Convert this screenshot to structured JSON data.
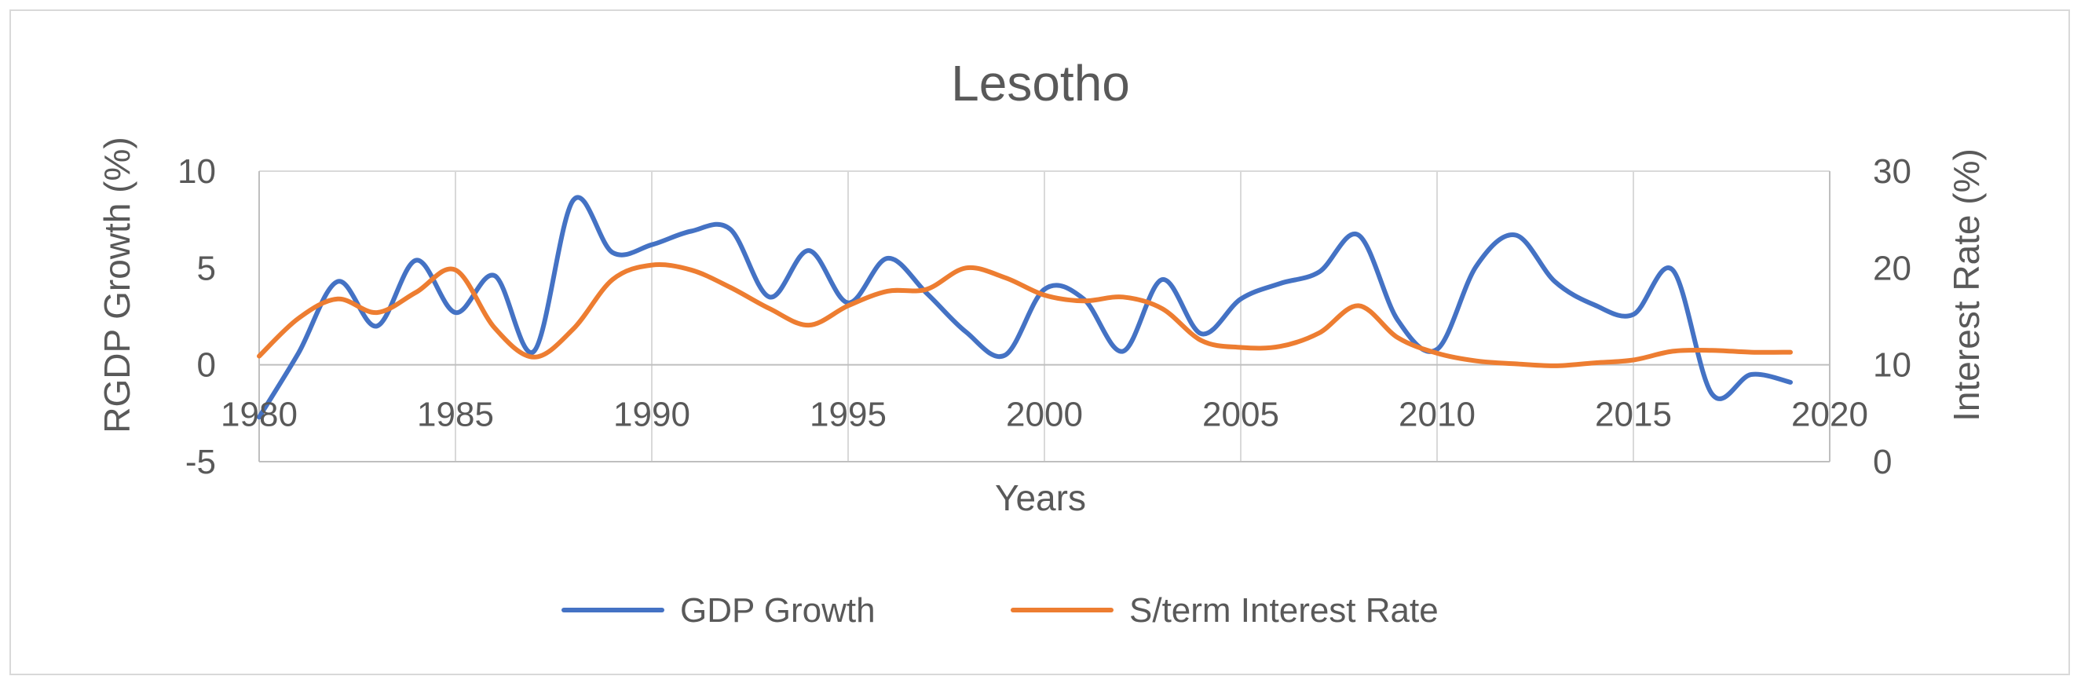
{
  "chart_data": {
    "type": "line",
    "title": "Lesotho",
    "xlabel": "Years",
    "ylabel_left": "RGDP Growth (%)",
    "ylabel_right": "Interest Rate (%)",
    "xlim": [
      1980,
      2020
    ],
    "ylim_left": [
      -5,
      10
    ],
    "ylim_right": [
      0,
      30
    ],
    "xticks": [
      "1980",
      "1985",
      "1990",
      "1995",
      "2000",
      "2005",
      "2010",
      "2015",
      "2020"
    ],
    "yticks_left": [
      "-5",
      "0",
      "5",
      "10"
    ],
    "yticks_right": [
      "0",
      "10",
      "20",
      "30"
    ],
    "grid": "vertical",
    "legend_position": "bottom",
    "x": [
      1980,
      1981,
      1982,
      1983,
      1984,
      1985,
      1986,
      1987,
      1988,
      1989,
      1990,
      1991,
      1992,
      1993,
      1994,
      1995,
      1996,
      1997,
      1998,
      1999,
      2000,
      2001,
      2002,
      2003,
      2004,
      2005,
      2006,
      2007,
      2008,
      2009,
      2010,
      2011,
      2012,
      2013,
      2014,
      2015,
      2016,
      2017,
      2018,
      2019
    ],
    "series": [
      {
        "name": "GDP Growth",
        "axis": "left",
        "color": "#4472c4",
        "values": [
          -2.7,
          0.6,
          4.3,
          2.0,
          5.4,
          2.7,
          4.6,
          0.7,
          8.5,
          5.8,
          6.2,
          6.9,
          7.0,
          3.5,
          5.9,
          3.2,
          5.5,
          3.7,
          1.7,
          0.5,
          3.9,
          3.4,
          0.7,
          4.4,
          1.6,
          3.4,
          4.2,
          4.8,
          6.7,
          2.3,
          0.8,
          5.1,
          6.7,
          4.3,
          3.1,
          2.6,
          4.9,
          -1.5,
          -0.5,
          -0.9
        ]
      },
      {
        "name": "S/term Interest Rate",
        "axis": "right",
        "color": "#ed7d31",
        "values": [
          10.9,
          14.8,
          16.8,
          15.4,
          17.5,
          19.8,
          13.8,
          10.8,
          13.7,
          18.8,
          20.3,
          19.8,
          18.0,
          15.8,
          14.1,
          16.1,
          17.6,
          17.8,
          20.0,
          19.0,
          17.2,
          16.6,
          17.0,
          15.8,
          12.5,
          11.8,
          11.9,
          13.3,
          16.1,
          12.8,
          11.2,
          10.4,
          10.1,
          9.9,
          10.2,
          10.5,
          11.4,
          11.5,
          11.3,
          11.3
        ]
      }
    ]
  }
}
